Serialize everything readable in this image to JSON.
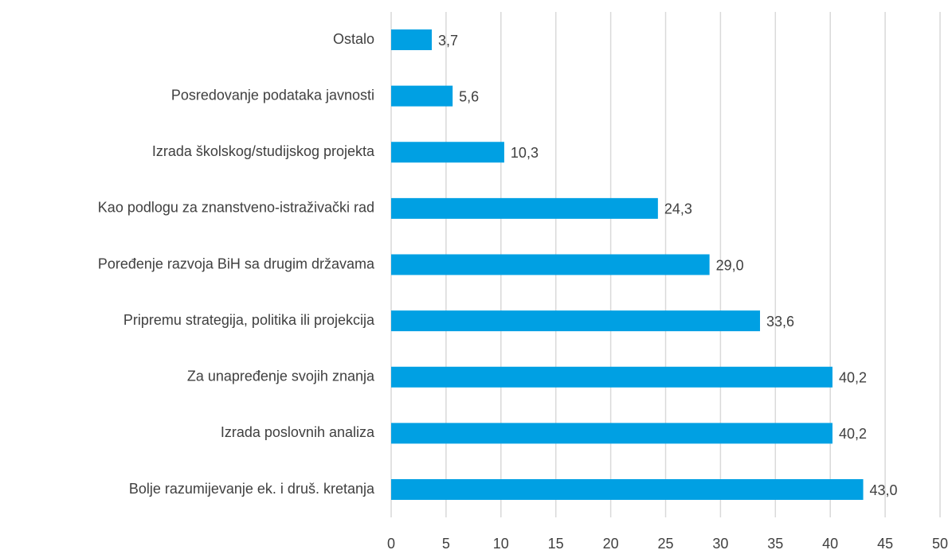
{
  "chart_data": {
    "type": "bar",
    "orientation": "horizontal",
    "categories": [
      "Ostalo",
      "Posredovanje podataka javnosti",
      "Izrada školskog/studijskog projekta",
      "Kao podlogu za znanstveno-istraživački rad",
      "Poređenje razvoja BiH sa drugim državama",
      "Pripremu strategija, politika ili projekcija",
      "Za unapređenje svojih znanja",
      "Izrada poslovnih analiza",
      "Bolje razumijevanje ek. i druš. kretanja"
    ],
    "values": [
      3.7,
      5.6,
      10.3,
      24.3,
      29.0,
      33.6,
      40.2,
      40.2,
      43.0
    ],
    "value_labels": [
      "3,7",
      "5,6",
      "10,3",
      "24,3",
      "29,0",
      "33,6",
      "40,2",
      "40,2",
      "43,0"
    ],
    "color": "#00a0e3",
    "xlim": [
      0,
      50
    ],
    "xticks": [
      0,
      5,
      10,
      15,
      20,
      25,
      30,
      35,
      40,
      45,
      50
    ],
    "grid": true
  }
}
